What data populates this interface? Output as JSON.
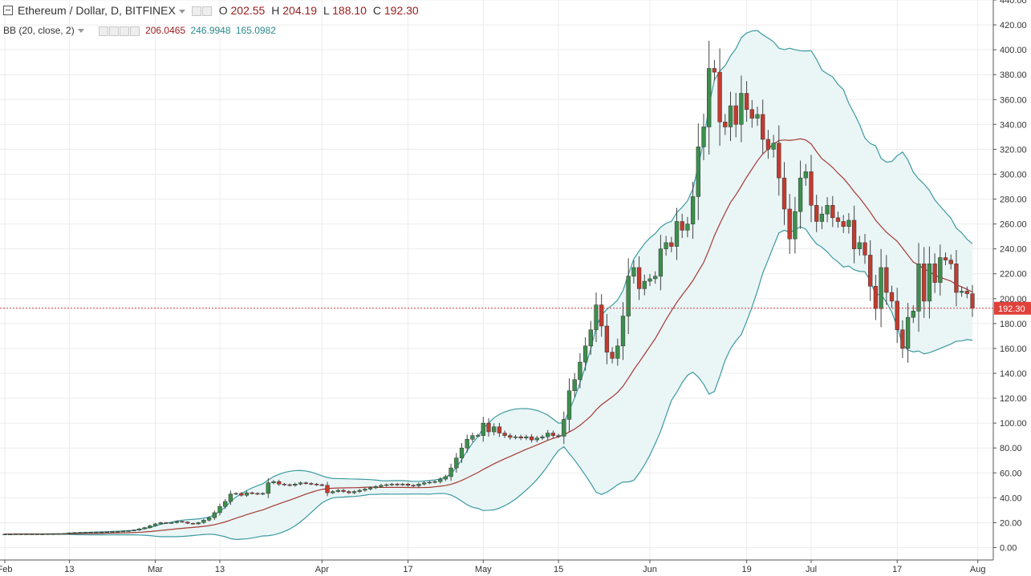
{
  "header": {
    "symbol_title": "Ethereum / Dollar, D, BITFINEX",
    "ohlc": {
      "o_label": "O",
      "o": "202.55",
      "h_label": "H",
      "h": "204.19",
      "l_label": "L",
      "l": "188.10",
      "c_label": "C",
      "c": "192.30"
    },
    "indicator_title": "BB (20, close, 2)",
    "indicator_values": {
      "basis": "206.0465",
      "upper": "246.9948",
      "lower": "165.0982"
    }
  },
  "colors": {
    "up": "#3d8f4c",
    "down": "#c23b2f",
    "upper_band": "#3b9aa0",
    "basis": "#a33a32",
    "band_fill": "#eaf5f6",
    "price_line": "#d03636",
    "price_label_bg": "#e0413a"
  },
  "chart_data": {
    "type": "candlestick",
    "title": "Ethereum / Dollar, D, BITFINEX",
    "ylim": [
      -10,
      440
    ],
    "y_ticks": [
      "0.00",
      "20.00",
      "40.00",
      "60.00",
      "80.00",
      "100.00",
      "120.00",
      "140.00",
      "160.00",
      "180.00",
      "200.00",
      "220.00",
      "240.00",
      "260.00",
      "280.00",
      "300.00",
      "320.00",
      "340.00",
      "360.00",
      "380.00",
      "400.00",
      "420.00",
      "440.00"
    ],
    "x_ticks": [
      {
        "label": "Feb",
        "day": 0
      },
      {
        "label": "13",
        "day": 12
      },
      {
        "label": "Mar",
        "day": 28
      },
      {
        "label": "13",
        "day": 40
      },
      {
        "label": "Apr",
        "day": 59
      },
      {
        "label": "17",
        "day": 75
      },
      {
        "label": "May",
        "day": 89
      },
      {
        "label": "15",
        "day": 103
      },
      {
        "label": "Jun",
        "day": 120
      },
      {
        "label": "19",
        "day": 138
      },
      {
        "label": "Jul",
        "day": 150
      },
      {
        "label": "17",
        "day": 166
      },
      {
        "label": "Aug",
        "day": 181
      }
    ],
    "last_price": 192.3,
    "last_price_label": "192.30",
    "grid": true,
    "closes": [
      10.8,
      10.8,
      10.9,
      10.9,
      10.9,
      10.9,
      10.9,
      10.9,
      11.0,
      11.0,
      11.1,
      11.2,
      11.8,
      12.0,
      12.1,
      12.2,
      12.3,
      12.3,
      12.4,
      12.6,
      12.8,
      13.0,
      13.2,
      13.5,
      14.0,
      15.0,
      16.0,
      17.5,
      19.0,
      20.0,
      19.5,
      20.0,
      21.0,
      20.5,
      19.5,
      19.0,
      20.0,
      22.0,
      24.0,
      28.0,
      33.0,
      37.0,
      43.0,
      43.5,
      42.0,
      44.0,
      43.5,
      43.0,
      43.5,
      52.0,
      53.0,
      51.0,
      50.5,
      50.0,
      51.0,
      52.0,
      51.5,
      51.0,
      50.5,
      50.0,
      44.0,
      45.0,
      46.0,
      45.0,
      44.0,
      45.0,
      46.0,
      47.0,
      48.0,
      49.0,
      50.0,
      50.5,
      51.0,
      50.5,
      51.0,
      50.0,
      49.5,
      51.0,
      52.0,
      52.5,
      53.0,
      55.0,
      57.0,
      64.0,
      72.0,
      80.0,
      87.0,
      90.0,
      90.0,
      100.0,
      93.0,
      97.0,
      92.0,
      90.0,
      88.5,
      89.0,
      88.0,
      89.0,
      86.5,
      88.0,
      89.0,
      92.0,
      90.0,
      89.5,
      103.0,
      126.0,
      135.0,
      149.0,
      162.0,
      175.0,
      195.0,
      178.0,
      157.0,
      152.0,
      162.0,
      186.0,
      218.0,
      225.0,
      208.0,
      214.0,
      216.0,
      218.0,
      240.0,
      245.0,
      242.0,
      262.0,
      255.0,
      260.0,
      282.0,
      322.0,
      338.0,
      385.0,
      382.0,
      342.0,
      338.0,
      355.0,
      340.0,
      365.0,
      352.0,
      345.0,
      348.0,
      328.0,
      320.0,
      325.0,
      297.0,
      272.0,
      248.0,
      270.0,
      297.0,
      302.0,
      275.0,
      262.0,
      268.0,
      275.0,
      265.0,
      262.0,
      258.0,
      263.0,
      240.0,
      245.0,
      235.0,
      210.0,
      192.0,
      225.0,
      205.0,
      198.0,
      175.0,
      160.0,
      185.0,
      190.0,
      228.0,
      198.0,
      228.0,
      213.0,
      233.0,
      231.0,
      228.0,
      205.0,
      206.0,
      204.0,
      192.3
    ]
  }
}
